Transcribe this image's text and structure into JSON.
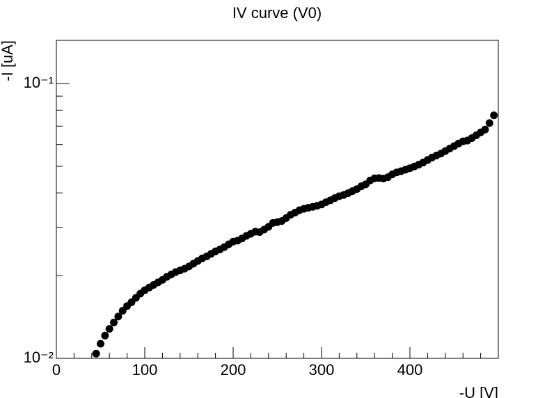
{
  "chart_data": {
    "type": "scatter",
    "title": "IV curve (V0)",
    "xlabel": "-U [V]",
    "ylabel": "-I [uA]",
    "x": [
      45,
      50,
      55,
      60,
      65,
      70,
      75,
      80,
      85,
      90,
      95,
      100,
      105,
      110,
      115,
      120,
      125,
      130,
      135,
      140,
      145,
      150,
      155,
      160,
      165,
      170,
      175,
      180,
      185,
      190,
      195,
      200,
      205,
      210,
      215,
      220,
      225,
      230,
      235,
      240,
      245,
      250,
      255,
      260,
      265,
      270,
      275,
      280,
      285,
      290,
      295,
      300,
      305,
      310,
      315,
      320,
      325,
      330,
      335,
      340,
      345,
      350,
      355,
      360,
      365,
      370,
      375,
      380,
      385,
      390,
      395,
      400,
      405,
      410,
      415,
      420,
      425,
      430,
      435,
      440,
      445,
      450,
      455,
      460,
      465,
      470,
      475,
      480,
      485,
      490,
      495
    ],
    "series": [
      {
        "name": "V0",
        "color": "#000000",
        "values": [
          0.0104,
          0.0113,
          0.0121,
          0.0128,
          0.0135,
          0.0142,
          0.0149,
          0.0155,
          0.016,
          0.0166,
          0.0172,
          0.0177,
          0.0181,
          0.0185,
          0.0189,
          0.0193,
          0.0198,
          0.0202,
          0.0206,
          0.0209,
          0.0212,
          0.0216,
          0.0221,
          0.0226,
          0.0231,
          0.0235,
          0.024,
          0.0245,
          0.0249,
          0.0254,
          0.026,
          0.0266,
          0.0268,
          0.0273,
          0.0279,
          0.0284,
          0.0289,
          0.0288,
          0.0294,
          0.0301,
          0.0311,
          0.0313,
          0.0316,
          0.0324,
          0.0333,
          0.0339,
          0.0346,
          0.035,
          0.0353,
          0.0356,
          0.0359,
          0.0363,
          0.037,
          0.0376,
          0.0383,
          0.0389,
          0.0393,
          0.0399,
          0.0406,
          0.0413,
          0.0423,
          0.043,
          0.0444,
          0.0452,
          0.0453,
          0.0451,
          0.0456,
          0.0467,
          0.0475,
          0.048,
          0.0486,
          0.0492,
          0.0499,
          0.0507,
          0.0516,
          0.0527,
          0.0538,
          0.0547,
          0.0556,
          0.0568,
          0.058,
          0.0592,
          0.0605,
          0.0616,
          0.062,
          0.0633,
          0.0648,
          0.0664,
          0.068,
          0.0718,
          0.0766
        ]
      }
    ],
    "xlim": [
      0,
      500
    ],
    "xticks": [
      0,
      100,
      200,
      300,
      400
    ],
    "xminorticks": [
      20,
      40,
      60,
      80,
      120,
      140,
      160,
      180,
      220,
      240,
      260,
      280,
      320,
      340,
      360,
      380,
      420,
      440,
      460,
      480
    ],
    "ylim": [
      0.01,
      0.1436
    ],
    "ylog": true,
    "yticks": [
      {
        "value": 0.01,
        "label": "10⁻²"
      },
      {
        "value": 0.1,
        "label": "10⁻¹"
      }
    ],
    "yminorticks": [
      0.02,
      0.03,
      0.04,
      0.05,
      0.06,
      0.07,
      0.08,
      0.09
    ],
    "grid": false
  }
}
